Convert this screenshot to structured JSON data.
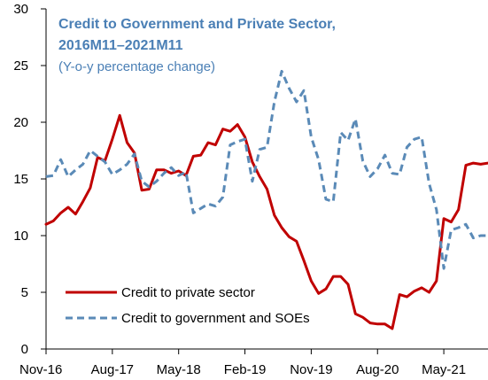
{
  "chart_data": {
    "type": "line",
    "title_line1": "Credit to Government and Private Sector,",
    "title_line2": "2016M11–2021M11",
    "subtitle": "(Y-o-y percentage change)",
    "xlabel": "",
    "ylabel": "",
    "ylim": [
      0,
      30
    ],
    "y_ticks": [
      "0",
      "5",
      "10",
      "15",
      "20",
      "25",
      "30"
    ],
    "x_ticks": [
      "Nov-16",
      "Aug-17",
      "May-18",
      "Feb-19",
      "Nov-19",
      "Aug-20",
      "May-21"
    ],
    "grid": false,
    "legend_position": "bottom-left",
    "x_months": [
      "2016-11",
      "2016-12",
      "2017-01",
      "2017-02",
      "2017-03",
      "2017-04",
      "2017-05",
      "2017-06",
      "2017-07",
      "2017-08",
      "2017-09",
      "2017-10",
      "2017-11",
      "2017-12",
      "2018-01",
      "2018-02",
      "2018-03",
      "2018-04",
      "2018-05",
      "2018-06",
      "2018-07",
      "2018-08",
      "2018-09",
      "2018-10",
      "2018-11",
      "2018-12",
      "2019-01",
      "2019-02",
      "2019-03",
      "2019-04",
      "2019-05",
      "2019-06",
      "2019-07",
      "2019-08",
      "2019-09",
      "2019-10",
      "2019-11",
      "2019-12",
      "2020-01",
      "2020-02",
      "2020-03",
      "2020-04",
      "2020-05",
      "2020-06",
      "2020-07",
      "2020-08",
      "2020-09",
      "2020-10",
      "2020-11",
      "2020-12",
      "2021-01",
      "2021-02",
      "2021-03",
      "2021-04",
      "2021-05",
      "2021-06",
      "2021-07",
      "2021-08",
      "2021-09",
      "2021-10",
      "2021-11"
    ],
    "series": [
      {
        "name": "Credit to private sector",
        "color": "#c00000",
        "dash": false,
        "values": [
          11.0,
          11.3,
          12.0,
          12.5,
          11.9,
          13.0,
          14.2,
          16.9,
          16.6,
          18.5,
          20.6,
          18.2,
          17.3,
          14.0,
          14.1,
          15.8,
          15.8,
          15.5,
          15.7,
          15.3,
          17.0,
          17.1,
          18.2,
          18.0,
          19.4,
          19.2,
          19.8,
          18.7,
          16.5,
          15.2,
          14.1,
          11.8,
          10.7,
          9.9,
          9.5,
          7.8,
          6.0,
          4.9,
          5.3,
          6.4,
          6.4,
          5.7,
          3.1,
          2.8,
          2.3,
          2.2,
          2.2,
          1.8,
          4.8,
          4.6,
          5.1,
          5.4,
          5.0,
          6.0,
          11.5,
          11.2,
          12.3,
          16.2,
          16.4,
          16.3,
          16.4
        ]
      },
      {
        "name": "Credit to government and SOEs",
        "color": "#5a8ab7",
        "dash": true,
        "values": [
          15.2,
          15.3,
          16.7,
          15.2,
          15.8,
          16.3,
          17.5,
          17.0,
          16.5,
          15.4,
          15.8,
          16.3,
          17.2,
          14.8,
          14.3,
          14.8,
          15.5,
          16.0,
          15.3,
          15.6,
          12.0,
          12.4,
          12.8,
          12.6,
          13.4,
          18.0,
          18.3,
          18.5,
          14.8,
          17.6,
          17.8,
          21.8,
          24.5,
          23.0,
          21.8,
          22.8,
          18.7,
          16.7,
          13.2,
          13.0,
          19.1,
          18.4,
          20.3,
          16.6,
          15.2,
          15.9,
          17.1,
          15.5,
          15.4,
          17.8,
          18.5,
          18.7,
          14.6,
          12.3,
          7.1,
          10.5,
          10.7,
          11.0,
          9.8,
          10.0,
          10.0
        ]
      }
    ]
  }
}
